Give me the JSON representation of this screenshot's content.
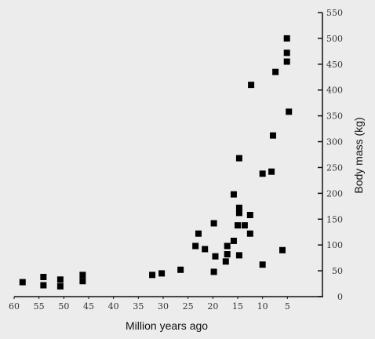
{
  "chart_data": {
    "type": "scatter",
    "title": "",
    "xlabel": "Million years ago",
    "ylabel": "Body mass (kg)",
    "xlim": [
      60,
      0
    ],
    "ylim": [
      0,
      550
    ],
    "x_ticks": [
      60,
      55,
      50,
      45,
      40,
      35,
      30,
      25,
      20,
      15,
      10,
      5
    ],
    "y_ticks": [
      0,
      50,
      100,
      150,
      200,
      250,
      300,
      350,
      400,
      450,
      500,
      550
    ],
    "grid": false,
    "marker": "square",
    "marker_color": "#000000",
    "points": [
      {
        "x": 58.3,
        "y": 28
      },
      {
        "x": 54.1,
        "y": 38
      },
      {
        "x": 54.1,
        "y": 22
      },
      {
        "x": 50.7,
        "y": 33
      },
      {
        "x": 50.7,
        "y": 20
      },
      {
        "x": 46.2,
        "y": 42
      },
      {
        "x": 46.2,
        "y": 30
      },
      {
        "x": 32.2,
        "y": 42
      },
      {
        "x": 30.3,
        "y": 45
      },
      {
        "x": 26.5,
        "y": 52
      },
      {
        "x": 23.5,
        "y": 98
      },
      {
        "x": 22.9,
        "y": 122
      },
      {
        "x": 21.6,
        "y": 92
      },
      {
        "x": 19.8,
        "y": 142
      },
      {
        "x": 19.8,
        "y": 48
      },
      {
        "x": 19.5,
        "y": 78
      },
      {
        "x": 17.4,
        "y": 68
      },
      {
        "x": 17.1,
        "y": 82
      },
      {
        "x": 17.1,
        "y": 98
      },
      {
        "x": 15.8,
        "y": 108
      },
      {
        "x": 15.8,
        "y": 198
      },
      {
        "x": 15.0,
        "y": 138
      },
      {
        "x": 14.7,
        "y": 162
      },
      {
        "x": 14.7,
        "y": 172
      },
      {
        "x": 14.7,
        "y": 80
      },
      {
        "x": 14.7,
        "y": 268
      },
      {
        "x": 13.6,
        "y": 138
      },
      {
        "x": 12.5,
        "y": 122
      },
      {
        "x": 12.5,
        "y": 158
      },
      {
        "x": 12.3,
        "y": 410
      },
      {
        "x": 10.0,
        "y": 62
      },
      {
        "x": 10.0,
        "y": 238
      },
      {
        "x": 8.2,
        "y": 242
      },
      {
        "x": 7.9,
        "y": 312
      },
      {
        "x": 7.4,
        "y": 435
      },
      {
        "x": 6.0,
        "y": 90
      },
      {
        "x": 5.1,
        "y": 455
      },
      {
        "x": 5.1,
        "y": 472
      },
      {
        "x": 5.1,
        "y": 500
      },
      {
        "x": 4.7,
        "y": 358
      }
    ]
  }
}
